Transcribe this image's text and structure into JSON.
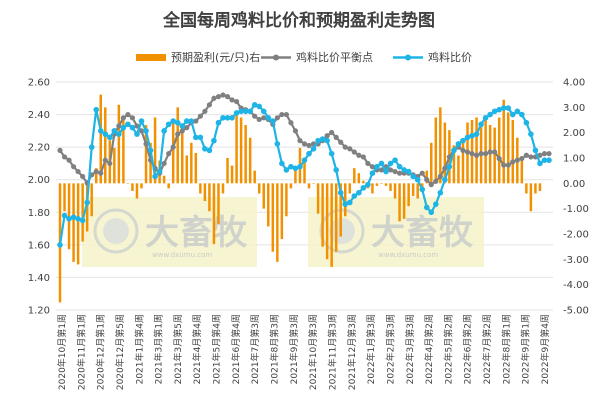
{
  "chart_data": {
    "type": "bar+line",
    "title": "全国每周鸡料比价和预期盈利走势图",
    "legend": [
      {
        "name": "预期盈利(元/只)右",
        "color": "#f29100",
        "kind": "bar"
      },
      {
        "name": "鸡料比价平衡点",
        "color": "#808080",
        "kind": "line"
      },
      {
        "name": "鸡料比价",
        "color": "#1fb4e6",
        "kind": "line"
      }
    ],
    "y_left": {
      "min": 1.2,
      "max": 2.6,
      "step": 0.2,
      "ticks": [
        "1.20",
        "1.40",
        "1.60",
        "1.80",
        "2.00",
        "2.20",
        "2.40",
        "2.60"
      ]
    },
    "y_right": {
      "min": -5,
      "max": 4,
      "step": 1,
      "ticks": [
        "-5.00",
        "-4.00",
        "-3.00",
        "-2.00",
        "-1.00",
        "0.00",
        "1.00",
        "2.00",
        "3.00",
        "4.00"
      ]
    },
    "x_labels": [
      "2020年10月第1周",
      "2020年11月第1周",
      "2020年12月第1周",
      "2020年12月第5周",
      "2021年1月第4周",
      "2021年3月第1周",
      "2021年3月第5周",
      "2021年4月第4周",
      "2021年5月第4周",
      "2021年6月第4周",
      "2021年7月第3周",
      "2021年8月第3周",
      "2021年9月第3周",
      "2021年10月第3周",
      "2021年11月第3周",
      "2021年12月第3周",
      "2022年1月第3周",
      "2022年2月第3周",
      "2022年3月第3周",
      "2022年4月第2周",
      "2022年5月第2周",
      "2022年6月第2周",
      "2022年7月第2周",
      "2022年8月第1周",
      "2022年9月第1周",
      "2022年9月第4周"
    ],
    "profit": [
      -4.7,
      -1.1,
      -2.6,
      -3.1,
      -3.2,
      -2.3,
      -1.9,
      -1.3,
      0.6,
      3.5,
      3.0,
      1.7,
      1.4,
      3.1,
      2.6,
      0.0,
      -0.3,
      -0.6,
      -0.2,
      2.3,
      1.6,
      2.6,
      0.9,
      0.3,
      -0.2,
      2.5,
      3.0,
      2.2,
      1.1,
      1.6,
      1.2,
      -0.4,
      -0.7,
      -1.1,
      -2.4,
      -1.6,
      -0.4,
      1.0,
      0.7,
      2.8,
      2.6,
      2.3,
      1.8,
      0.5,
      -0.4,
      -1.0,
      -1.7,
      -2.7,
      -3.1,
      -2.2,
      -1.3,
      -0.2,
      0.5,
      1.4,
      1.0,
      -0.2,
      0.0,
      -1.2,
      -2.5,
      -3.0,
      -3.3,
      -2.7,
      -2.1,
      -1.3,
      -0.4,
      0.6,
      0.4,
      0.1,
      -0.2,
      -0.4,
      -0.1,
      0.0,
      -0.1,
      -0.3,
      -0.6,
      -1.5,
      -1.4,
      -0.9,
      -0.5,
      -0.6,
      -0.3,
      0.5,
      1.6,
      2.6,
      3.0,
      2.4,
      2.1,
      1.5,
      1.1,
      1.7,
      2.4,
      2.5,
      2.6,
      2.4,
      2.5,
      2.3,
      2.2,
      2.6,
      3.3,
      2.8,
      2.5,
      1.8,
      1.0,
      -0.4,
      -1.1,
      -0.4,
      -0.3
    ],
    "breakeven": [
      2.18,
      2.14,
      2.12,
      2.08,
      2.05,
      2.02,
      1.98,
      2.03,
      2.05,
      2.04,
      2.12,
      2.1,
      2.28,
      2.33,
      2.38,
      2.4,
      2.38,
      2.33,
      2.3,
      2.22,
      2.12,
      2.07,
      2.04,
      2.1,
      2.16,
      2.2,
      2.28,
      2.3,
      2.32,
      2.35,
      2.36,
      2.39,
      2.42,
      2.46,
      2.5,
      2.51,
      2.52,
      2.51,
      2.49,
      2.48,
      2.44,
      2.43,
      2.42,
      2.39,
      2.37,
      2.38,
      2.37,
      2.34,
      2.38,
      2.4,
      2.4,
      2.35,
      2.3,
      2.24,
      2.22,
      2.21,
      2.22,
      2.22,
      2.24,
      2.27,
      2.29,
      2.26,
      2.23,
      2.2,
      2.19,
      2.17,
      2.15,
      2.14,
      2.1,
      2.08,
      2.06,
      2.06,
      2.08,
      2.06,
      2.05,
      2.04,
      2.04,
      2.04,
      2.03,
      2.02,
      2.04,
      2.0,
      1.97,
      1.99,
      2.02,
      2.07,
      2.14,
      2.18,
      2.2,
      2.18,
      2.17,
      2.16,
      2.15,
      2.16,
      2.16,
      2.17,
      2.17,
      2.13,
      2.09,
      2.09,
      2.11,
      2.12,
      2.13,
      2.15,
      2.14,
      2.14,
      2.15,
      2.16,
      2.16
    ],
    "ratio": [
      1.6,
      1.78,
      1.76,
      1.77,
      1.76,
      1.75,
      1.86,
      2.2,
      2.43,
      2.3,
      2.28,
      2.26,
      2.3,
      2.28,
      2.32,
      2.34,
      2.32,
      2.28,
      2.36,
      2.3,
      2.18,
      2.02,
      2.05,
      2.3,
      2.34,
      2.36,
      2.35,
      2.33,
      2.36,
      2.36,
      2.26,
      2.26,
      2.19,
      2.18,
      2.24,
      2.35,
      2.38,
      2.38,
      2.38,
      2.41,
      2.42,
      2.42,
      2.42,
      2.46,
      2.45,
      2.42,
      2.38,
      2.36,
      2.22,
      2.1,
      2.06,
      2.08,
      2.07,
      2.08,
      2.12,
      2.16,
      2.19,
      2.24,
      2.25,
      2.24,
      2.16,
      2.06,
      1.92,
      1.85,
      1.86,
      1.9,
      1.92,
      1.95,
      1.97,
      2.04,
      2.08,
      2.1,
      2.05,
      2.1,
      2.12,
      2.08,
      2.06,
      2.05,
      2.02,
      2.0,
      1.94,
      1.83,
      1.8,
      1.85,
      1.92,
      2.0,
      2.08,
      2.18,
      2.22,
      2.24,
      2.26,
      2.27,
      2.28,
      2.34,
      2.38,
      2.4,
      2.42,
      2.43,
      2.44,
      2.44,
      2.4,
      2.42,
      2.4,
      2.35,
      2.28,
      2.18,
      2.1,
      2.12,
      2.12
    ]
  },
  "watermark": {
    "brand": "大畜牧",
    "url": "www.dxumu.com"
  }
}
